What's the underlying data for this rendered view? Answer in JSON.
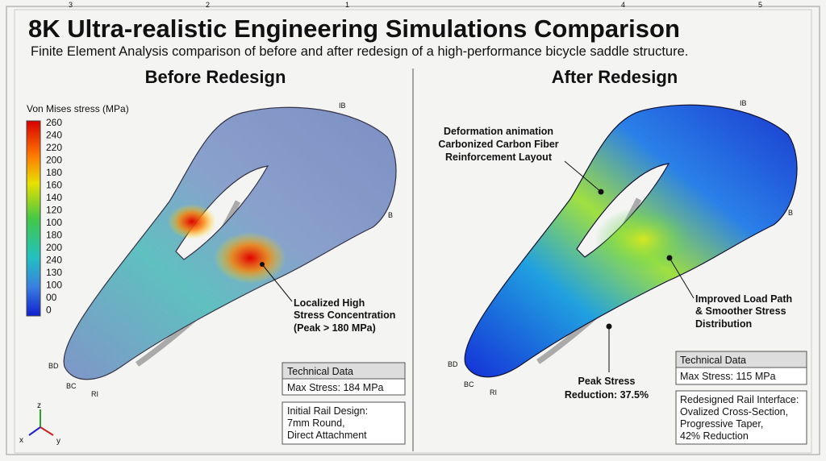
{
  "header": {
    "title": "8K Ultra-realistic Engineering Simulations Comparison",
    "subtitle": "Finite Element Analysis comparison of before and after redesign of a high-performance bicycle saddle structure."
  },
  "frame_labels": [
    "3",
    "2",
    "1",
    "4",
    "5"
  ],
  "legend": {
    "title": "Von Mises stress (MPa)",
    "labels": [
      "260",
      "240",
      "220",
      "200",
      "180",
      "160",
      "140",
      "120",
      "100",
      "180",
      "200",
      "240",
      "130",
      "100",
      "00",
      "0"
    ]
  },
  "before": {
    "heading": "Before Redesign",
    "points": [
      "IB",
      "B",
      "BD",
      "BC",
      "RI"
    ],
    "annotation": [
      "Localized High",
      "Stress Concentration",
      "(Peak > 180 MPa)"
    ],
    "tech": {
      "header": "Technical Data",
      "row": "Max Stress: 184 MPa",
      "note": [
        "Initial Rail Design:",
        "7mm Round,",
        "Direct Attachment"
      ]
    }
  },
  "after": {
    "heading": "After Redesign",
    "points": [
      "IB",
      "B",
      "BD",
      "BC",
      "RI"
    ],
    "annotations": [
      [
        "Deformation animation",
        "Carbonized Carbon Fiber",
        "Reinforcement Layout"
      ],
      [
        "Improved Load Path",
        "& Smoother Stress",
        "Distribution"
      ],
      [
        "Peak Stress",
        "Reduction: 37.5%"
      ]
    ],
    "tech": {
      "header": "Technical Data",
      "row": "Max Stress: 115 MPa",
      "note": [
        "Redesigned Rail Interface:",
        "Ovalized Cross-Section,",
        "Progressive Taper,",
        "42% Reduction"
      ]
    }
  },
  "axes": [
    "z",
    "x",
    "y"
  ]
}
